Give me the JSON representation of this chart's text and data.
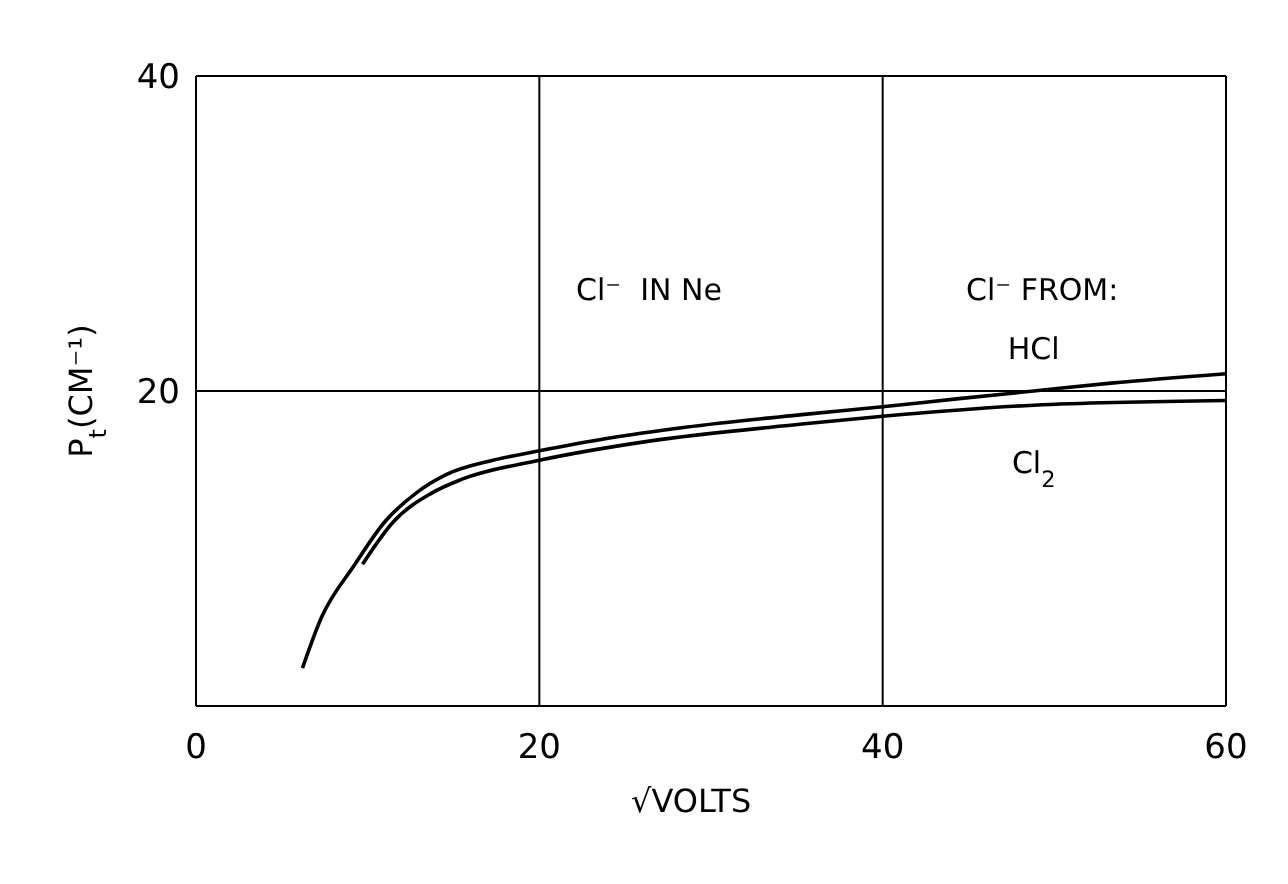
{
  "chart_data": {
    "type": "line",
    "xlabel": "√VOLTS",
    "ylabel": "P$_{t}$(CM⁻¹)",
    "xlim": [
      0,
      60
    ],
    "xticks": [
      0,
      20,
      40,
      60
    ],
    "ylim": [
      0,
      40
    ],
    "yticks": [
      {
        "value": 0,
        "label": null
      },
      20,
      40
    ],
    "grid": true,
    "legend": false,
    "marker": "none",
    "line_style": "solid",
    "annotations": [
      "Cl⁻  IN Ne",
      "Cl⁻ FROM:"
    ],
    "series": [
      {
        "name": "HCl",
        "color": "#000000",
        "x": [
          6.2,
          7.3,
          9.2,
          11.0,
          12.8,
          14.6,
          17.3,
          20,
          24,
          28.5,
          35.3,
          40,
          44.3,
          48.8,
          53.3,
          60
        ],
        "values": [
          2.4,
          5.6,
          8.9,
          11.7,
          13.5,
          14.7,
          15.6,
          16.2,
          17.0,
          17.7,
          18.5,
          19.0,
          19.5,
          20.0,
          20.5,
          21.1
        ]
      },
      {
        "name": "Cl$_{2}$",
        "color": "#000000",
        "x": [
          9.7,
          11.5,
          13.7,
          15.5,
          20,
          26.3,
          35.3,
          40,
          48.8,
          60
        ],
        "values": [
          9.0,
          11.7,
          13.5,
          14.4,
          15.6,
          16.8,
          17.9,
          18.4,
          19.1,
          19.4
        ]
      }
    ]
  }
}
